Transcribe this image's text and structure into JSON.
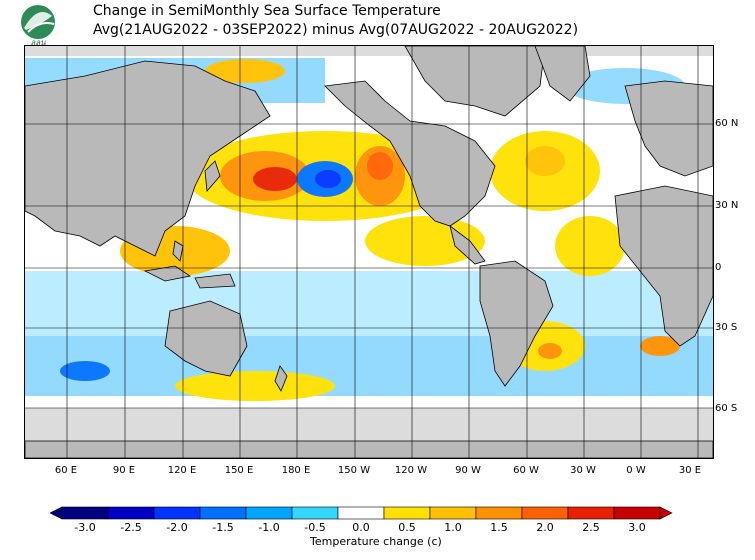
{
  "header": {
    "logo_text": "CNES",
    "title_line1": "Change in SemiMonthly Sea Surface Temperature",
    "title_line2": "Avg(21AUG2022 - 03SEP2022) minus Avg(07AUG2022 - 20AUG2022)"
  },
  "map": {
    "lat_labels": [
      "60 N",
      "30 N",
      "0",
      "30 S",
      "60 S"
    ],
    "lon_labels": [
      "60 E",
      "90 E",
      "120 E",
      "150 E",
      "180 E",
      "150 W",
      "120 W",
      "90 W",
      "60 W",
      "30 W",
      "0 W",
      "30 E"
    ],
    "land_color": "#b9b9b9",
    "ice_color": "#dcdcdc"
  },
  "colorbar": {
    "tick_labels": [
      "-3.0",
      "-2.5",
      "-2.0",
      "-1.5",
      "-1.0",
      "-0.5",
      "0.0",
      "0.5",
      "1.0",
      "1.5",
      "2.0",
      "2.5",
      "3.0"
    ],
    "colors": [
      "#000080",
      "#0000c8",
      "#0033ff",
      "#0070ff",
      "#00a5ff",
      "#33d6ff",
      "#ffffff",
      "#ffe000",
      "#ffc000",
      "#ff9000",
      "#ff6000",
      "#e82000",
      "#c80000"
    ],
    "unit_label": "Temperature change  (c)"
  }
}
